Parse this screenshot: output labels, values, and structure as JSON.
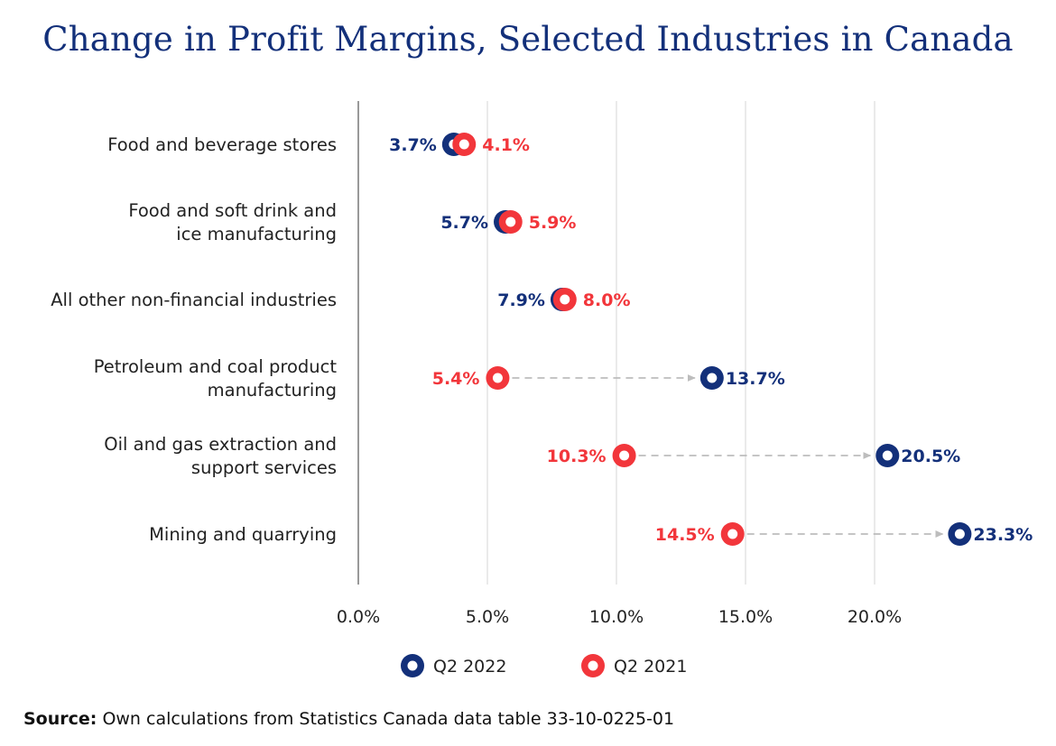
{
  "title": "Change in Profit Margins, Selected Industries in Canada",
  "source": {
    "label": "Source:",
    "text": "Own calculations from Statistics Canada data table 33-10-0225-01"
  },
  "colors": {
    "q2_2022": "#13307a",
    "q2_2021": "#f2363b",
    "axis": "#999999",
    "grid": "#d6d6d6",
    "arrow": "#bdbdbd",
    "text": "#222222"
  },
  "chart_data": {
    "type": "dot_plot",
    "categories": [
      [
        "Food and beverage stores"
      ],
      [
        "Food and soft drink and",
        "ice manufacturing"
      ],
      [
        "All other non-financial industries"
      ],
      [
        "Petroleum and coal product",
        "manufacturing"
      ],
      [
        "Oil and gas extraction and",
        "support services"
      ],
      [
        "Mining and quarrying"
      ]
    ],
    "series": [
      {
        "name": "Q2 2022",
        "values": [
          3.7,
          5.7,
          7.9,
          13.7,
          20.5,
          23.3
        ]
      },
      {
        "name": "Q2 2021",
        "values": [
          4.1,
          5.9,
          8.0,
          5.4,
          10.3,
          14.5
        ]
      }
    ],
    "value_labels": {
      "Q2 2022": [
        "3.7%",
        "5.7%",
        "7.9%",
        "13.7%",
        "20.5%",
        "23.3%"
      ],
      "Q2 2021": [
        "4.1%",
        "5.9%",
        "8.0%",
        "5.4%",
        "10.3%",
        "14.5%"
      ]
    },
    "xlim": [
      0,
      25
    ],
    "xticks": [
      0,
      5,
      10,
      15,
      20
    ],
    "xtick_labels": [
      "0.0%",
      "5.0%",
      "10.0%",
      "15.0%",
      "20.0%"
    ],
    "grid": true,
    "legend_position": "bottom-center",
    "change_arrows": true
  }
}
